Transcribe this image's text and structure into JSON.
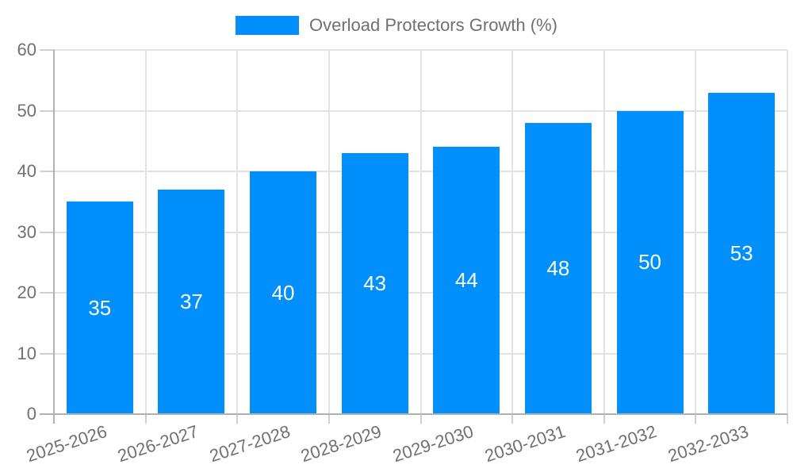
{
  "legend": {
    "label": "Overload Protectors Growth (%)"
  },
  "colors": {
    "bar": "#008ffb",
    "gridline": "#e2e2e2",
    "axis_line": "#b1b1b1",
    "tick": "#cfcfcf",
    "axis_label": "#707070",
    "value_label": "#ffffff",
    "background": "#ffffff"
  },
  "chart_data": {
    "type": "bar",
    "title": "Overload Protectors Growth (%)",
    "categories": [
      "2025-2026",
      "2026-2027",
      "2027-2028",
      "2028-2029",
      "2029-2030",
      "2030-2031",
      "2031-2032",
      "2032-2033"
    ],
    "values": [
      35,
      37,
      40,
      43,
      44,
      48,
      50,
      53
    ],
    "xlabel": "",
    "ylabel": "",
    "ylim": [
      0,
      60
    ],
    "yticks": [
      0,
      10,
      20,
      30,
      40,
      50,
      60
    ],
    "grid": true,
    "legend_position": "top",
    "value_label_position": "inside-center",
    "x_label_rotation_deg": -18
  }
}
